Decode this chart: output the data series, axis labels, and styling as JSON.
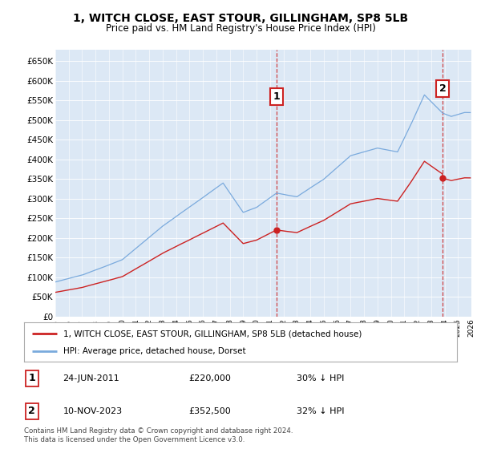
{
  "title": "1, WITCH CLOSE, EAST STOUR, GILLINGHAM, SP8 5LB",
  "subtitle": "Price paid vs. HM Land Registry's House Price Index (HPI)",
  "ylabel_ticks": [
    "£0",
    "£50K",
    "£100K",
    "£150K",
    "£200K",
    "£250K",
    "£300K",
    "£350K",
    "£400K",
    "£450K",
    "£500K",
    "£550K",
    "£600K",
    "£650K"
  ],
  "ytick_values": [
    0,
    50000,
    100000,
    150000,
    200000,
    250000,
    300000,
    350000,
    400000,
    450000,
    500000,
    550000,
    600000,
    650000
  ],
  "ylim": [
    0,
    680000
  ],
  "hpi_color": "#7aaadd",
  "price_color": "#cc2222",
  "vline_color": "#cc2222",
  "background_color": "#ffffff",
  "plot_bg_color": "#dce8f5",
  "annotation1": {
    "label": "1",
    "date": "24-JUN-2011",
    "price": "£220,000",
    "hpi_pct": "30% ↓ HPI",
    "x_year": 2011.48
  },
  "annotation2": {
    "label": "2",
    "date": "10-NOV-2023",
    "price": "£352,500",
    "hpi_pct": "32% ↓ HPI",
    "x_year": 2023.86
  },
  "sale1_value": 220000,
  "sale2_value": 352500,
  "legend_line1": "1, WITCH CLOSE, EAST STOUR, GILLINGHAM, SP8 5LB (detached house)",
  "legend_line2": "HPI: Average price, detached house, Dorset",
  "footnote": "Contains HM Land Registry data © Crown copyright and database right 2024.\nThis data is licensed under the Open Government Licence v3.0.",
  "xmin": 1995,
  "xmax": 2026
}
